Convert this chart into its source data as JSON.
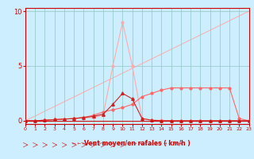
{
  "x": [
    0,
    1,
    2,
    3,
    4,
    5,
    6,
    7,
    8,
    9,
    10,
    11,
    12,
    13,
    14,
    15,
    16,
    17,
    18,
    19,
    20,
    21,
    22,
    23
  ],
  "line_diag": [
    0.0,
    0.43,
    0.87,
    1.3,
    1.74,
    2.17,
    2.61,
    3.04,
    3.48,
    3.91,
    4.35,
    4.78,
    5.22,
    5.65,
    6.09,
    6.52,
    6.96,
    7.39,
    7.83,
    8.26,
    8.7,
    9.13,
    9.57,
    10.0
  ],
  "line_peak_light": [
    0.0,
    0.0,
    0.05,
    0.1,
    0.15,
    0.2,
    0.25,
    0.3,
    0.5,
    5.0,
    9.0,
    5.0,
    0.2,
    0.05,
    0.05,
    0.0,
    0.0,
    0.0,
    0.0,
    0.0,
    0.0,
    0.0,
    0.0,
    0.0
  ],
  "line_peak_dark": [
    0.0,
    0.0,
    0.05,
    0.1,
    0.15,
    0.2,
    0.3,
    0.4,
    0.6,
    1.5,
    2.5,
    2.0,
    0.2,
    0.05,
    0.0,
    0.0,
    0.0,
    0.0,
    0.0,
    0.0,
    0.0,
    0.0,
    0.0,
    0.0
  ],
  "line_plateau": [
    0.0,
    0.0,
    0.05,
    0.1,
    0.15,
    0.2,
    0.3,
    0.5,
    0.8,
    1.0,
    1.2,
    1.5,
    2.2,
    2.5,
    2.8,
    3.0,
    3.0,
    3.0,
    3.0,
    3.0,
    3.0,
    3.0,
    0.2,
    0.0
  ],
  "bg_color": "#cceeff",
  "color_diag": "#ffaaaa",
  "color_light_peak": "#ffaaaa",
  "color_dark_peak": "#cc2222",
  "color_plateau": "#ff6666",
  "grid_color": "#99cccc",
  "text_color": "#cc0000",
  "axis_color": "#cc0000",
  "arrow_row_color": "#cc3333",
  "xlabel": "Vent moyen/en rafales ( km/h )",
  "xlim": [
    0,
    23
  ],
  "ylim": [
    -0.3,
    10.3
  ],
  "yticks": [
    0,
    5,
    10
  ],
  "xticks": [
    0,
    1,
    2,
    3,
    4,
    5,
    6,
    7,
    8,
    9,
    10,
    11,
    12,
    13,
    14,
    15,
    16,
    17,
    18,
    19,
    20,
    21,
    22,
    23
  ]
}
